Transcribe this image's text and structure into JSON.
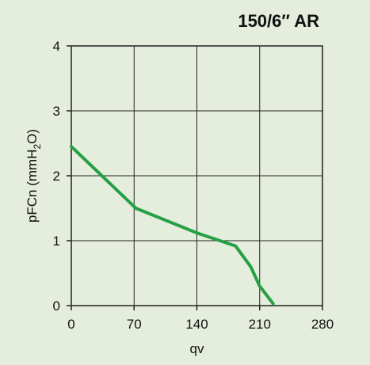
{
  "chart_data": {
    "type": "line",
    "title": "150/6″ AR",
    "xlabel": "qv",
    "ylabel": "pFCn (mmH2O)",
    "ylabel_parts": [
      "pFCn (mmH",
      "2",
      "O)"
    ],
    "xlim": [
      0,
      280
    ],
    "ylim": [
      0,
      4
    ],
    "xticks": [
      0,
      70,
      140,
      210,
      280
    ],
    "yticks": [
      0,
      1,
      2,
      3,
      4
    ],
    "grid": true,
    "legend": "none",
    "series": [
      {
        "color": "#26a045",
        "x": [
          0,
          72,
          140,
          183,
          200,
          210,
          225
        ],
        "y": [
          2.45,
          1.5,
          1.12,
          0.92,
          0.6,
          0.3,
          0.03
        ]
      }
    ]
  }
}
